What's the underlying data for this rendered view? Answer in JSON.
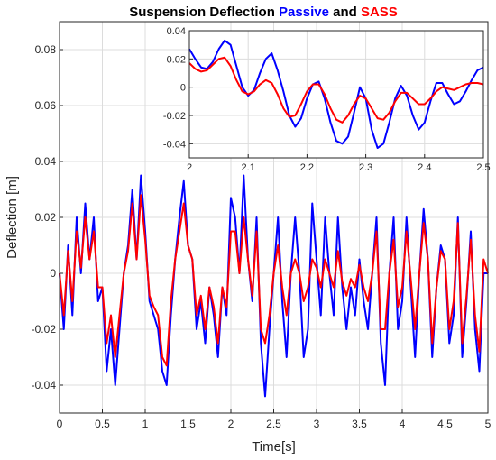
{
  "chart_data": [
    {
      "type": "line",
      "title_parts": [
        {
          "text": "Suspension Deflection ",
          "color": "#000000"
        },
        {
          "text": "Passive",
          "color": "#0000ff"
        },
        {
          "text": " and ",
          "color": "#000000"
        },
        {
          "text": "SASS",
          "color": "#ff0000"
        }
      ],
      "xlabel": "Time[s]",
      "ylabel": "Deflection [m]",
      "xlim": [
        0,
        5
      ],
      "ylim": [
        -0.05,
        0.09
      ],
      "xticks": [
        0,
        0.5,
        1,
        1.5,
        2,
        2.5,
        3,
        3.5,
        4,
        4.5,
        5
      ],
      "xtick_labels": [
        "0",
        "0.5",
        "1",
        "1.5",
        "2",
        "2.5",
        "3",
        "3.5",
        "4",
        "4.5",
        "5"
      ],
      "yticks": [
        -0.04,
        -0.02,
        0,
        0.02,
        0.04,
        0.06,
        0.08
      ],
      "ytick_labels": [
        "-0.04",
        "-0.02",
        "0",
        "0.02",
        "0.04",
        "0.06",
        "0.08"
      ],
      "grid": true,
      "series": [
        {
          "color": "#0000ff",
          "x": [
            0,
            0.05,
            0.1,
            0.15,
            0.2,
            0.25,
            0.3,
            0.35,
            0.4,
            0.45,
            0.5,
            0.55,
            0.6,
            0.65,
            0.7,
            0.75,
            0.8,
            0.85,
            0.9,
            0.95,
            1.0,
            1.05,
            1.1,
            1.15,
            1.2,
            1.25,
            1.3,
            1.35,
            1.4,
            1.45,
            1.5,
            1.55,
            1.6,
            1.65,
            1.7,
            1.75,
            1.8,
            1.85,
            1.9,
            1.95,
            2.0,
            2.05,
            2.1,
            2.15,
            2.2,
            2.25,
            2.3,
            2.35,
            2.4,
            2.45,
            2.5,
            2.55,
            2.6,
            2.65,
            2.7,
            2.75,
            2.8,
            2.85,
            2.9,
            2.95,
            3.0,
            3.05,
            3.1,
            3.15,
            3.2,
            3.25,
            3.3,
            3.35,
            3.4,
            3.45,
            3.5,
            3.55,
            3.6,
            3.65,
            3.7,
            3.75,
            3.8,
            3.85,
            3.9,
            3.95,
            4.0,
            4.05,
            4.1,
            4.15,
            4.2,
            4.25,
            4.3,
            4.35,
            4.4,
            4.45,
            4.5,
            4.55,
            4.6,
            4.65,
            4.7,
            4.75,
            4.8,
            4.85,
            4.9,
            4.95,
            5.0
          ],
          "y": [
            0.0,
            -0.02,
            0.01,
            -0.015,
            0.02,
            0.0,
            0.025,
            0.005,
            0.02,
            -0.01,
            -0.005,
            -0.035,
            -0.02,
            -0.04,
            -0.02,
            0.0,
            0.01,
            0.03,
            0.005,
            0.035,
            0.015,
            -0.01,
            -0.015,
            -0.02,
            -0.035,
            -0.04,
            -0.015,
            0.005,
            0.02,
            0.033,
            0.01,
            0.005,
            -0.02,
            -0.01,
            -0.025,
            -0.005,
            -0.015,
            -0.03,
            -0.005,
            -0.015,
            0.027,
            0.02,
            0.0,
            0.035,
            0.005,
            -0.01,
            0.02,
            -0.025,
            -0.044,
            -0.02,
            0.0,
            0.02,
            -0.01,
            -0.03,
            0.0,
            0.02,
            0.0,
            -0.03,
            -0.02,
            0.025,
            0.005,
            -0.015,
            0.02,
            0.0,
            -0.015,
            0.02,
            -0.005,
            -0.02,
            -0.005,
            -0.015,
            0.005,
            -0.01,
            -0.02,
            0.0,
            0.02,
            -0.025,
            -0.04,
            0.0,
            0.02,
            -0.02,
            -0.01,
            0.02,
            -0.005,
            -0.03,
            0.0,
            0.023,
            0.005,
            -0.03,
            -0.005,
            0.01,
            0.005,
            -0.025,
            -0.015,
            0.02,
            -0.03,
            -0.01,
            0.015,
            -0.02,
            -0.035,
            0.0,
            0.0
          ]
        },
        {
          "color": "#ff0000",
          "x": [
            0,
            0.05,
            0.1,
            0.15,
            0.2,
            0.25,
            0.3,
            0.35,
            0.4,
            0.45,
            0.5,
            0.55,
            0.6,
            0.65,
            0.7,
            0.75,
            0.8,
            0.85,
            0.9,
            0.95,
            1.0,
            1.05,
            1.1,
            1.15,
            1.2,
            1.25,
            1.3,
            1.35,
            1.4,
            1.45,
            1.5,
            1.55,
            1.6,
            1.65,
            1.7,
            1.75,
            1.8,
            1.85,
            1.9,
            1.95,
            2.0,
            2.05,
            2.1,
            2.15,
            2.2,
            2.25,
            2.3,
            2.35,
            2.4,
            2.45,
            2.5,
            2.55,
            2.6,
            2.65,
            2.7,
            2.75,
            2.8,
            2.85,
            2.9,
            2.95,
            3.0,
            3.05,
            3.1,
            3.15,
            3.2,
            3.25,
            3.3,
            3.35,
            3.4,
            3.45,
            3.5,
            3.55,
            3.6,
            3.65,
            3.7,
            3.75,
            3.8,
            3.85,
            3.9,
            3.95,
            4.0,
            4.05,
            4.1,
            4.15,
            4.2,
            4.25,
            4.3,
            4.35,
            4.4,
            4.45,
            4.5,
            4.55,
            4.6,
            4.65,
            4.7,
            4.75,
            4.8,
            4.85,
            4.9,
            4.95,
            5.0
          ],
          "y": [
            0.0,
            -0.015,
            0.008,
            -0.01,
            0.015,
            0.002,
            0.02,
            0.005,
            0.015,
            -0.005,
            -0.005,
            -0.025,
            -0.015,
            -0.03,
            -0.015,
            0.0,
            0.008,
            0.025,
            0.005,
            0.028,
            0.012,
            -0.008,
            -0.012,
            -0.015,
            -0.03,
            -0.033,
            -0.01,
            0.005,
            0.015,
            0.025,
            0.01,
            0.005,
            -0.015,
            -0.008,
            -0.02,
            -0.005,
            -0.012,
            -0.025,
            -0.005,
            -0.012,
            0.015,
            0.015,
            0.0,
            0.02,
            0.005,
            -0.008,
            0.015,
            -0.02,
            -0.025,
            -0.015,
            0.0,
            0.01,
            -0.005,
            -0.015,
            0.0,
            0.005,
            0.0,
            -0.01,
            -0.005,
            0.005,
            0.002,
            -0.005,
            0.005,
            0.0,
            -0.005,
            0.008,
            -0.003,
            -0.008,
            -0.002,
            -0.005,
            0.003,
            -0.005,
            -0.01,
            0.0,
            0.015,
            -0.02,
            -0.02,
            0.0,
            0.012,
            -0.012,
            -0.005,
            0.015,
            -0.002,
            -0.02,
            0.0,
            0.018,
            0.005,
            -0.025,
            -0.005,
            0.008,
            0.005,
            -0.02,
            -0.01,
            0.018,
            -0.025,
            -0.008,
            0.012,
            -0.015,
            -0.028,
            0.005,
            0.0
          ]
        }
      ]
    },
    {
      "type": "line",
      "xlim": [
        2,
        2.5
      ],
      "ylim": [
        -0.05,
        0.04
      ],
      "xticks": [
        2,
        2.1,
        2.2,
        2.3,
        2.4,
        2.5
      ],
      "xtick_labels": [
        "2",
        "2.1",
        "2.2",
        "2.3",
        "2.4",
        "2.5"
      ],
      "yticks": [
        -0.04,
        -0.02,
        0,
        0.02,
        0.04
      ],
      "ytick_labels": [
        "-0.04",
        "-0.02",
        "0",
        "0.02",
        "0.04"
      ],
      "grid": true,
      "series": [
        {
          "color": "#0000ff",
          "x": [
            2.0,
            2.01,
            2.02,
            2.03,
            2.04,
            2.05,
            2.06,
            2.07,
            2.08,
            2.09,
            2.1,
            2.11,
            2.12,
            2.13,
            2.14,
            2.15,
            2.16,
            2.17,
            2.18,
            2.19,
            2.2,
            2.21,
            2.22,
            2.23,
            2.24,
            2.25,
            2.26,
            2.27,
            2.28,
            2.29,
            2.3,
            2.31,
            2.32,
            2.33,
            2.34,
            2.35,
            2.36,
            2.37,
            2.38,
            2.39,
            2.4,
            2.41,
            2.42,
            2.43,
            2.44,
            2.45,
            2.46,
            2.47,
            2.48,
            2.49,
            2.5
          ],
          "y": [
            0.027,
            0.02,
            0.014,
            0.013,
            0.018,
            0.027,
            0.033,
            0.03,
            0.015,
            0.0,
            -0.006,
            -0.002,
            0.01,
            0.02,
            0.024,
            0.012,
            -0.003,
            -0.02,
            -0.028,
            -0.022,
            -0.008,
            0.002,
            0.004,
            -0.008,
            -0.025,
            -0.038,
            -0.04,
            -0.035,
            -0.018,
            0.0,
            -0.008,
            -0.03,
            -0.043,
            -0.04,
            -0.025,
            -0.008,
            0.001,
            -0.006,
            -0.02,
            -0.03,
            -0.025,
            -0.01,
            0.003,
            0.003,
            -0.005,
            -0.012,
            -0.01,
            -0.003,
            0.005,
            0.012,
            0.014
          ]
        },
        {
          "color": "#ff0000",
          "x": [
            2.0,
            2.01,
            2.02,
            2.03,
            2.04,
            2.05,
            2.06,
            2.07,
            2.08,
            2.09,
            2.1,
            2.11,
            2.12,
            2.13,
            2.14,
            2.15,
            2.16,
            2.17,
            2.18,
            2.19,
            2.2,
            2.21,
            2.22,
            2.23,
            2.24,
            2.25,
            2.26,
            2.27,
            2.28,
            2.29,
            2.3,
            2.31,
            2.32,
            2.33,
            2.34,
            2.35,
            2.36,
            2.37,
            2.38,
            2.39,
            2.4,
            2.41,
            2.42,
            2.43,
            2.44,
            2.45,
            2.46,
            2.47,
            2.48,
            2.49,
            2.5
          ],
          "y": [
            0.017,
            0.013,
            0.011,
            0.012,
            0.016,
            0.02,
            0.021,
            0.015,
            0.005,
            -0.003,
            -0.005,
            -0.003,
            0.002,
            0.005,
            0.003,
            -0.005,
            -0.015,
            -0.021,
            -0.02,
            -0.012,
            -0.003,
            0.002,
            0.002,
            -0.005,
            -0.015,
            -0.023,
            -0.025,
            -0.02,
            -0.012,
            -0.006,
            -0.008,
            -0.015,
            -0.022,
            -0.023,
            -0.018,
            -0.01,
            -0.004,
            -0.004,
            -0.008,
            -0.012,
            -0.012,
            -0.008,
            -0.003,
            0.0,
            -0.001,
            -0.002,
            0.0,
            0.002,
            0.003,
            0.003,
            0.002
          ]
        }
      ]
    }
  ]
}
